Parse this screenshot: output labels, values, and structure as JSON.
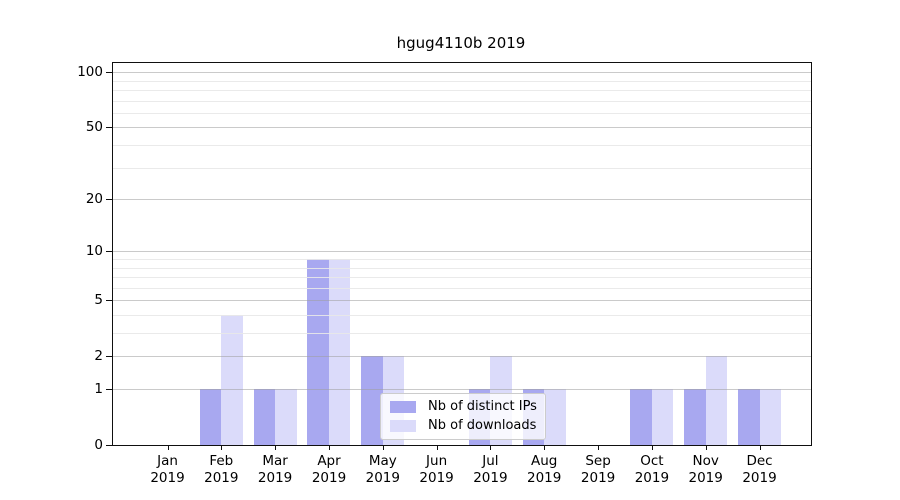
{
  "chart_data": {
    "type": "bar",
    "title": "hgug4110b 2019",
    "year_label": "2019",
    "categories": [
      "Jan",
      "Feb",
      "Mar",
      "Apr",
      "May",
      "Jun",
      "Jul",
      "Aug",
      "Sep",
      "Oct",
      "Nov",
      "Dec"
    ],
    "series": [
      {
        "name": "Nb of distinct IPs",
        "color": "#a8a8f0",
        "values": [
          0,
          1,
          1,
          9,
          2,
          0,
          1,
          1,
          0,
          1,
          1,
          1
        ]
      },
      {
        "name": "Nb of downloads",
        "color": "#dbdbfa",
        "values": [
          0,
          4,
          1,
          9,
          2,
          0,
          2,
          1,
          0,
          1,
          2,
          1
        ]
      }
    ],
    "yscale": "log1p",
    "ytick_values": [
      0,
      1,
      2,
      5,
      10,
      20,
      50,
      100
    ],
    "minor_gridline_values": [
      3,
      4,
      6,
      7,
      8,
      9,
      30,
      40,
      60,
      70,
      80,
      90
    ],
    "ylim": [
      0,
      112
    ],
    "grid": true,
    "legend_position": "lower center"
  }
}
